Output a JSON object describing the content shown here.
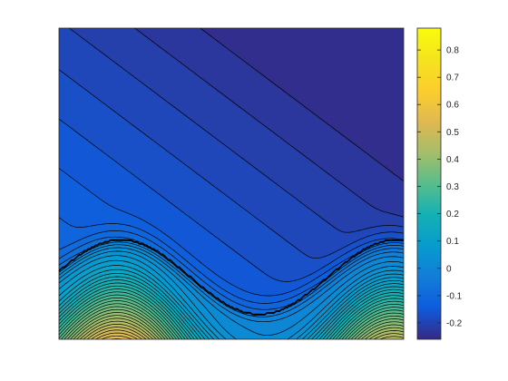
{
  "chart_data": {
    "type": "heatmap",
    "subtype": "filled-contour",
    "title": "",
    "xlabel": "",
    "ylabel": "",
    "axes_ticks_visible": false,
    "colormap": "parula",
    "contour_line_color": "#000000",
    "colorbar": {
      "location": "right",
      "clim": [
        -0.26,
        0.88
      ],
      "ticks": [
        -0.2,
        -0.1,
        0,
        0.1,
        0.2,
        0.3,
        0.4,
        0.5,
        0.6,
        0.7,
        0.8
      ],
      "tick_labels": [
        "-0.2",
        "-0.1",
        "0",
        "0.1",
        "0.2",
        "0.3",
        "0.4",
        "0.5",
        "0.6",
        "0.7",
        "0.8"
      ]
    },
    "field_description": "values near -0.2 across upper and right regions, rising through dense contour bands along the bottom to a peak near 0.85 at lower left and a secondary high near 0.7 at lower right",
    "peaks": [
      {
        "x": 0.16,
        "y": 0.05,
        "value": 0.85
      },
      {
        "x": 0.97,
        "y": 0.05,
        "value": 0.7
      }
    ]
  }
}
